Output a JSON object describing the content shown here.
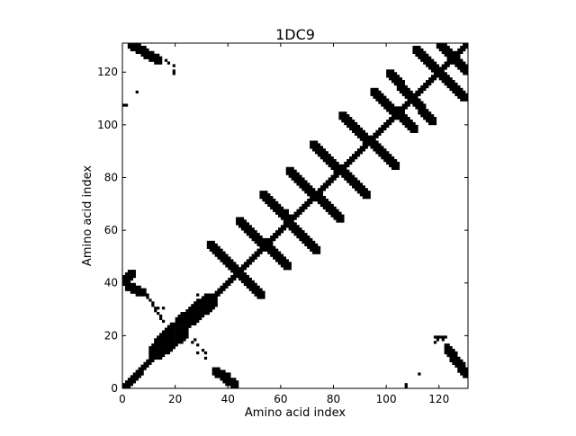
{
  "chart_data": {
    "type": "heatmap",
    "subtype": "binary-contact-map",
    "title": "1DC9",
    "xlabel": "Amino acid index",
    "ylabel": "Amino acid index",
    "xlim": [
      0,
      131
    ],
    "ylim": [
      0,
      131
    ],
    "xticks": [
      0,
      20,
      40,
      60,
      80,
      100,
      120
    ],
    "yticks": [
      0,
      20,
      40,
      60,
      80,
      100,
      120
    ],
    "cell_color": "#000000",
    "background_color": "#ffffff",
    "grid": false,
    "legend": "none",
    "diagonal_band_halfwidth": 1,
    "contact_segments": [
      {
        "from": [
          0,
          40
        ],
        "to": [
          3,
          43
        ],
        "halfwidth": 1
      },
      {
        "from": [
          2,
          0
        ],
        "to": [
          7,
          5
        ],
        "halfwidth": 0
      },
      {
        "from": [
          2,
          38
        ],
        "to": [
          7,
          36
        ],
        "halfwidth": 1
      },
      {
        "from": [
          3,
          130
        ],
        "to": [
          13,
          124
        ],
        "halfwidth": 1
      },
      {
        "from": [
          8,
          36
        ],
        "to": [
          15,
          25
        ],
        "halfwidth": 0
      },
      {
        "from": [
          12,
          13
        ],
        "to": [
          22,
          21
        ],
        "halfwidth": 2
      },
      {
        "from": [
          14,
          16
        ],
        "to": [
          20,
          22
        ],
        "halfwidth": 2
      },
      {
        "from": [
          22,
          24
        ],
        "to": [
          33,
          33
        ],
        "halfwidth": 2
      },
      {
        "from": [
          26,
          27
        ],
        "to": [
          32,
          32
        ],
        "halfwidth": 2
      },
      {
        "from": [
          33,
          54
        ],
        "to": [
          52,
          35
        ],
        "halfwidth": 1
      },
      {
        "from": [
          35,
          6
        ],
        "to": [
          42,
          1
        ],
        "halfwidth": 1
      },
      {
        "from": [
          44,
          63
        ],
        "to": [
          62,
          46
        ],
        "halfwidth": 1
      },
      {
        "from": [
          53,
          73
        ],
        "to": [
          73,
          52
        ],
        "halfwidth": 1
      },
      {
        "from": [
          63,
          82
        ],
        "to": [
          82,
          64
        ],
        "halfwidth": 1
      },
      {
        "from": [
          72,
          92
        ],
        "to": [
          92,
          73
        ],
        "halfwidth": 1
      },
      {
        "from": [
          83,
          103
        ],
        "to": [
          103,
          84
        ],
        "halfwidth": 1
      },
      {
        "from": [
          95,
          112
        ],
        "to": [
          110,
          98
        ],
        "halfwidth": 1
      },
      {
        "from": [
          101,
          119
        ],
        "to": [
          117,
          101
        ],
        "halfwidth": 1
      },
      {
        "from": [
          111,
          128
        ],
        "to": [
          129,
          110
        ],
        "halfwidth": 1
      },
      {
        "from": [
          118,
          19
        ],
        "to": [
          122,
          19
        ],
        "halfwidth": 0
      },
      {
        "from": [
          123,
          14
        ],
        "to": [
          130,
          5
        ],
        "halfwidth": 1
      },
      {
        "from": [
          120,
          130
        ],
        "to": [
          130,
          120
        ],
        "halfwidth": 1
      }
    ],
    "contact_points": [
      [
        0,
        107
      ],
      [
        1,
        107
      ],
      [
        5,
        112
      ],
      [
        14,
        123
      ],
      [
        16,
        124
      ],
      [
        17,
        123
      ],
      [
        19,
        122
      ],
      [
        19,
        120
      ],
      [
        19,
        119
      ],
      [
        13,
        30
      ],
      [
        15,
        30
      ],
      [
        14,
        27
      ],
      [
        19,
        20
      ],
      [
        21,
        17
      ],
      [
        21,
        18
      ],
      [
        27,
        18
      ],
      [
        26,
        17
      ],
      [
        28,
        16
      ],
      [
        30,
        14
      ],
      [
        31,
        13
      ],
      [
        31,
        11
      ],
      [
        28,
        13
      ],
      [
        37,
        6
      ],
      [
        40,
        5
      ],
      [
        28,
        35
      ],
      [
        55,
        72
      ],
      [
        56,
        72
      ],
      [
        62,
        67
      ],
      [
        61,
        66
      ],
      [
        72,
        53
      ],
      [
        72,
        54
      ],
      [
        107,
        0
      ],
      [
        107,
        1
      ],
      [
        112,
        5
      ],
      [
        118,
        17
      ],
      [
        119,
        18
      ],
      [
        121,
        18
      ],
      [
        122,
        16
      ],
      [
        123,
        16
      ],
      [
        124,
        15
      ]
    ]
  }
}
